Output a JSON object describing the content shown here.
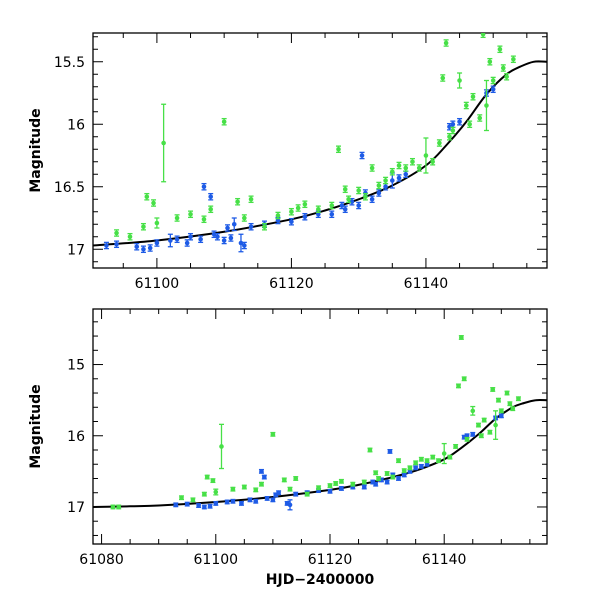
{
  "chart_data": [
    {
      "type": "scatter",
      "ylabel": "Magnitude",
      "xlabel": "",
      "xlim": [
        61090.5,
        61158
      ],
      "ylim": [
        17.15,
        15.27
      ],
      "xticks": [
        61100,
        61120,
        61140
      ],
      "xtick_labels": [
        "61100",
        "61120",
        "61140"
      ],
      "yticks": [
        15.5,
        16,
        16.5,
        17
      ],
      "ytick_labels": [
        "15.5",
        "16",
        "16.5",
        "17"
      ],
      "colors": {
        "blue": "#1e5be6",
        "green": "#47e047",
        "curve": "#000000"
      },
      "curve": {
        "x": [
          61090.5,
          61100,
          61110,
          61120,
          61125,
          61130,
          61135,
          61140,
          61143,
          61146,
          61149,
          61152,
          61154,
          61156,
          61158
        ],
        "y": [
          16.97,
          16.93,
          16.86,
          16.76,
          16.69,
          16.6,
          16.49,
          16.33,
          16.17,
          15.98,
          15.76,
          15.6,
          15.54,
          15.5,
          15.5
        ]
      },
      "series": [
        {
          "name": "blue",
          "x": [
            61092.5,
            61094,
            61097,
            61098,
            61099,
            61100,
            61102,
            61103,
            61104.5,
            61105,
            61106.5,
            61107,
            61108,
            61108.5,
            61109,
            61110,
            61110.5,
            61111,
            61111.5,
            61112.5,
            61113,
            61114,
            61116,
            61118,
            61120,
            61122,
            61124,
            61126,
            61127.5,
            61128,
            61129,
            61130,
            61130.5,
            61131,
            61132,
            61133,
            61134,
            61135,
            61136,
            61137,
            61143.5,
            61144,
            61145,
            61149,
            61150
          ],
          "y": [
            16.97,
            16.96,
            16.98,
            17.0,
            16.99,
            16.95,
            16.93,
            16.92,
            16.95,
            16.9,
            16.92,
            16.5,
            16.58,
            16.88,
            16.9,
            16.93,
            16.83,
            16.91,
            16.8,
            16.95,
            16.97,
            16.82,
            16.8,
            16.77,
            16.78,
            16.74,
            16.72,
            16.72,
            16.65,
            16.68,
            16.62,
            16.65,
            16.25,
            16.55,
            16.6,
            16.55,
            16.5,
            16.45,
            16.43,
            16.4,
            16.02,
            16.0,
            15.98,
            15.75,
            15.72
          ],
          "err": [
            0,
            0,
            0,
            0,
            0,
            0,
            0.05,
            0,
            0,
            0,
            0,
            0,
            0,
            0,
            0,
            0,
            0,
            0,
            0.05,
            0.07,
            0,
            0,
            0,
            0,
            0,
            0,
            0,
            0,
            0,
            0,
            0,
            0,
            0,
            0,
            0,
            0,
            0,
            0.06,
            0,
            0,
            0,
            0,
            0,
            0,
            0
          ]
        },
        {
          "name": "green",
          "x": [
            61094,
            61096,
            61098,
            61098.5,
            61099.5,
            61100,
            61101,
            61103,
            61105,
            61107,
            61108,
            61110,
            61112,
            61113,
            61114,
            61116,
            61118,
            61120,
            61121,
            61122,
            61124,
            61126,
            61127,
            61128,
            61128.5,
            61130,
            61131,
            61132,
            61133,
            61134,
            61135,
            61136,
            61137,
            61138,
            61139,
            61140,
            61141,
            61142,
            61142.5,
            61143,
            61143.5,
            61144,
            61145,
            61146,
            61146.5,
            61147,
            61148,
            61148.5,
            61149,
            61149.5,
            61150,
            61151,
            61151.5,
            61152,
            61153
          ],
          "y": [
            16.87,
            16.9,
            16.82,
            16.58,
            16.63,
            16.79,
            16.15,
            16.75,
            16.72,
            16.76,
            16.68,
            15.98,
            16.62,
            16.75,
            16.6,
            16.82,
            16.73,
            16.7,
            16.67,
            16.64,
            16.68,
            16.65,
            16.2,
            16.52,
            16.6,
            16.53,
            16.58,
            16.35,
            16.49,
            16.45,
            16.38,
            16.33,
            16.35,
            16.3,
            16.35,
            16.25,
            16.3,
            16.15,
            15.63,
            15.35,
            16.1,
            16.05,
            15.65,
            15.85,
            16.0,
            15.78,
            15.95,
            15.28,
            15.85,
            15.5,
            15.65,
            15.4,
            15.55,
            15.62,
            15.48
          ],
          "err": [
            0,
            0,
            0,
            0,
            0,
            0.04,
            0.31,
            0,
            0,
            0,
            0,
            0,
            0,
            0,
            0,
            0,
            0,
            0,
            0,
            0,
            0,
            0,
            0,
            0,
            0,
            0,
            0,
            0,
            0,
            0,
            0,
            0,
            0,
            0,
            0,
            0.14,
            0,
            0,
            0,
            0,
            0,
            0,
            0.06,
            0,
            0,
            0,
            0,
            0,
            0.2,
            0,
            0,
            0,
            0,
            0,
            0
          ]
        }
      ]
    },
    {
      "type": "scatter",
      "ylabel": "Magnitude",
      "xlabel": "HJD−2400000",
      "xlim": [
        61078.5,
        61158
      ],
      "ylim": [
        17.52,
        14.22
      ],
      "xticks": [
        61080,
        61100,
        61120,
        61140
      ],
      "xtick_labels": [
        "61080",
        "61100",
        "61120",
        "61140"
      ],
      "yticks": [
        15,
        16,
        17
      ],
      "ytick_labels": [
        "15",
        "16",
        "17"
      ],
      "colors": {
        "blue": "#1e5be6",
        "green": "#47e047",
        "curve": "#000000"
      },
      "curve": {
        "x": [
          61078.5,
          61085,
          61090,
          61100,
          61110,
          61120,
          61125,
          61130,
          61135,
          61140,
          61143,
          61146,
          61149,
          61152,
          61154,
          61156,
          61158
        ],
        "y": [
          17.0,
          16.99,
          16.98,
          16.93,
          16.86,
          16.76,
          16.69,
          16.6,
          16.49,
          16.33,
          16.17,
          15.98,
          15.76,
          15.6,
          15.54,
          15.5,
          15.5
        ]
      },
      "series": [
        {
          "name": "blue",
          "x": [
            61093,
            61095,
            61097,
            61098,
            61099,
            61100,
            61102,
            61103,
            61104.5,
            61106,
            61107,
            61108,
            61108.5,
            61109,
            61110,
            61110.5,
            61111,
            61112.5,
            61113,
            61114,
            61116,
            61118,
            61120,
            61122,
            61124,
            61126,
            61127.5,
            61128,
            61129,
            61130,
            61130.5,
            61131,
            61132,
            61133,
            61134,
            61135,
            61136,
            61137,
            61143.5,
            61144,
            61145,
            61149,
            61150
          ],
          "y": [
            16.97,
            16.96,
            16.98,
            17.0,
            16.99,
            16.95,
            16.93,
            16.92,
            16.95,
            16.9,
            16.92,
            16.5,
            16.58,
            16.88,
            16.9,
            16.83,
            16.8,
            16.95,
            16.97,
            16.82,
            16.8,
            16.77,
            16.78,
            16.74,
            16.72,
            16.72,
            16.65,
            16.68,
            16.62,
            16.65,
            16.22,
            16.55,
            16.6,
            16.55,
            16.5,
            16.45,
            16.43,
            16.4,
            16.02,
            16.0,
            15.98,
            15.75,
            15.72
          ],
          "err": [
            0,
            0,
            0,
            0,
            0,
            0,
            0,
            0,
            0,
            0,
            0,
            0,
            0,
            0,
            0,
            0,
            0,
            0,
            0.07,
            0,
            0,
            0,
            0,
            0,
            0,
            0,
            0,
            0,
            0,
            0,
            0,
            0,
            0,
            0,
            0,
            0,
            0,
            0,
            0,
            0,
            0,
            0,
            0
          ]
        },
        {
          "name": "green",
          "x": [
            61082,
            61083,
            61094,
            61096,
            61098,
            61098.5,
            61099.5,
            61100,
            61101,
            61103,
            61105,
            61107,
            61108,
            61110,
            61112,
            61113,
            61114,
            61116,
            61118,
            61120,
            61121,
            61122,
            61124,
            61126,
            61127,
            61128,
            61128.5,
            61130,
            61131,
            61132,
            61133,
            61134,
            61135,
            61136,
            61137,
            61138,
            61139,
            61140,
            61141,
            61142,
            61142.5,
            61143,
            61143.5,
            61144,
            61145,
            61146,
            61146.5,
            61147,
            61148,
            61148.5,
            61149,
            61149.5,
            61150,
            61151,
            61151.5,
            61152,
            61153
          ],
          "y": [
            17.0,
            17.0,
            16.87,
            16.9,
            16.82,
            16.58,
            16.63,
            16.79,
            16.15,
            16.75,
            16.72,
            16.76,
            16.68,
            15.98,
            16.62,
            16.75,
            16.6,
            16.82,
            16.73,
            16.7,
            16.67,
            16.64,
            16.68,
            16.65,
            16.2,
            16.52,
            16.6,
            16.53,
            16.58,
            16.35,
            16.49,
            16.45,
            16.38,
            16.33,
            16.35,
            16.3,
            16.35,
            16.25,
            16.3,
            16.15,
            15.3,
            14.62,
            15.2,
            16.05,
            15.65,
            15.85,
            16.0,
            15.78,
            15.95,
            15.35,
            15.85,
            15.5,
            15.65,
            15.4,
            15.55,
            15.62,
            15.48
          ],
          "err": [
            0,
            0,
            0,
            0,
            0,
            0,
            0,
            0.04,
            0.31,
            0,
            0,
            0,
            0,
            0,
            0,
            0,
            0,
            0,
            0,
            0,
            0,
            0,
            0,
            0,
            0,
            0,
            0,
            0,
            0,
            0,
            0,
            0,
            0,
            0,
            0,
            0,
            0,
            0.14,
            0,
            0,
            0,
            0,
            0,
            0,
            0.06,
            0,
            0,
            0,
            0,
            0,
            0.2,
            0,
            0,
            0,
            0,
            0,
            0
          ]
        }
      ]
    }
  ]
}
